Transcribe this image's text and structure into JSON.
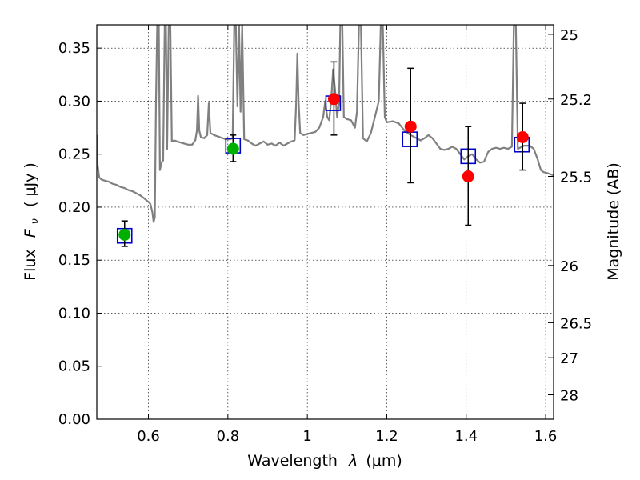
{
  "chart_data": {
    "type": "scatter",
    "xlabel_prefix": "Wavelength",
    "xlabel_symbol": "λ",
    "xlabel_unit": "(μm)",
    "ylabel_prefix": "Flux",
    "ylabel_symbol": "F",
    "ylabel_subscript": "ν",
    "ylabel_unit": "( μJy )",
    "y2label": "Magnitude (AB)",
    "xlim": [
      0.47,
      1.62
    ],
    "ylim": [
      0.0,
      0.372
    ],
    "grid": true,
    "x_ticks": [
      0.6,
      0.8,
      1.0,
      1.2,
      1.4,
      1.6
    ],
    "x_tick_labels": [
      "0.6",
      "0.8",
      "1",
      "1.2",
      "1.4",
      "1.6"
    ],
    "y_ticks": [
      0.0,
      0.05,
      0.1,
      0.15,
      0.2,
      0.25,
      0.3,
      0.35
    ],
    "y_tick_labels": [
      "0.00",
      "0.05",
      "0.10",
      "0.15",
      "0.20",
      "0.25",
      "0.30",
      "0.35"
    ],
    "y2_ticks": [
      {
        "label": "25",
        "flux": 0.363
      },
      {
        "label": "25.2",
        "flux": 0.302
      },
      {
        "label": "25.5",
        "flux": 0.229
      },
      {
        "label": "26",
        "flux": 0.145
      },
      {
        "label": "26.5",
        "flux": 0.091
      },
      {
        "label": "27",
        "flux": 0.058
      },
      {
        "label": "28",
        "flux": 0.023
      }
    ],
    "colors": {
      "spectrum": "#808080",
      "model_box": "#0000cc",
      "green_point": "#00b000",
      "red_point": "#ff0000",
      "errorbar": "#000000"
    },
    "model_boxes": [
      {
        "x": 0.54,
        "y": 0.173
      },
      {
        "x": 0.813,
        "y": 0.258
      },
      {
        "x": 1.065,
        "y": 0.298
      },
      {
        "x": 1.258,
        "y": 0.264
      },
      {
        "x": 1.405,
        "y": 0.248
      },
      {
        "x": 1.54,
        "y": 0.259
      }
    ],
    "green_points": [
      {
        "x": 0.54,
        "y": 0.174,
        "err_low": 0.011,
        "err_high": 0.013
      },
      {
        "x": 0.813,
        "y": 0.255,
        "err_low": 0.012,
        "err_high": 0.013
      }
    ],
    "red_points": [
      {
        "x": 1.067,
        "y": 0.302,
        "err_low": 0.034,
        "err_high": 0.035
      },
      {
        "x": 1.26,
        "y": 0.276,
        "err_low": 0.053,
        "err_high": 0.055
      },
      {
        "x": 1.405,
        "y": 0.229,
        "err_low": 0.046,
        "err_high": 0.047
      },
      {
        "x": 1.542,
        "y": 0.266,
        "err_low": 0.031,
        "err_high": 0.032
      }
    ],
    "spectrum": [
      [
        0.47,
        0.268
      ],
      [
        0.472,
        0.24
      ],
      [
        0.476,
        0.228
      ],
      [
        0.482,
        0.226
      ],
      [
        0.49,
        0.225
      ],
      [
        0.5,
        0.224
      ],
      [
        0.51,
        0.222
      ],
      [
        0.52,
        0.221
      ],
      [
        0.53,
        0.219
      ],
      [
        0.54,
        0.218
      ],
      [
        0.55,
        0.216
      ],
      [
        0.56,
        0.215
      ],
      [
        0.57,
        0.213
      ],
      [
        0.58,
        0.211
      ],
      [
        0.59,
        0.208
      ],
      [
        0.6,
        0.205
      ],
      [
        0.605,
        0.203
      ],
      [
        0.61,
        0.195
      ],
      [
        0.613,
        0.186
      ],
      [
        0.616,
        0.19
      ],
      [
        0.619,
        0.3
      ],
      [
        0.622,
        0.372
      ],
      [
        0.626,
        0.372
      ],
      [
        0.629,
        0.235
      ],
      [
        0.633,
        0.242
      ],
      [
        0.637,
        0.244
      ],
      [
        0.641,
        0.372
      ],
      [
        0.644,
        0.372
      ],
      [
        0.647,
        0.255
      ],
      [
        0.651,
        0.372
      ],
      [
        0.655,
        0.372
      ],
      [
        0.659,
        0.262
      ],
      [
        0.665,
        0.263
      ],
      [
        0.672,
        0.262
      ],
      [
        0.68,
        0.261
      ],
      [
        0.69,
        0.26
      ],
      [
        0.7,
        0.259
      ],
      [
        0.71,
        0.259
      ],
      [
        0.718,
        0.263
      ],
      [
        0.722,
        0.272
      ],
      [
        0.725,
        0.305
      ],
      [
        0.728,
        0.272
      ],
      [
        0.732,
        0.266
      ],
      [
        0.74,
        0.265
      ],
      [
        0.748,
        0.268
      ],
      [
        0.752,
        0.298
      ],
      [
        0.756,
        0.27
      ],
      [
        0.765,
        0.268
      ],
      [
        0.78,
        0.266
      ],
      [
        0.795,
        0.264
      ],
      [
        0.805,
        0.264
      ],
      [
        0.812,
        0.265
      ],
      [
        0.816,
        0.372
      ],
      [
        0.82,
        0.372
      ],
      [
        0.824,
        0.295
      ],
      [
        0.828,
        0.372
      ],
      [
        0.832,
        0.29
      ],
      [
        0.836,
        0.372
      ],
      [
        0.841,
        0.264
      ],
      [
        0.85,
        0.263
      ],
      [
        0.86,
        0.26
      ],
      [
        0.87,
        0.258
      ],
      [
        0.88,
        0.26
      ],
      [
        0.89,
        0.262
      ],
      [
        0.9,
        0.259
      ],
      [
        0.91,
        0.26
      ],
      [
        0.92,
        0.258
      ],
      [
        0.93,
        0.261
      ],
      [
        0.94,
        0.258
      ],
      [
        0.95,
        0.26
      ],
      [
        0.96,
        0.262
      ],
      [
        0.968,
        0.263
      ],
      [
        0.972,
        0.3
      ],
      [
        0.975,
        0.345
      ],
      [
        0.978,
        0.3
      ],
      [
        0.982,
        0.27
      ],
      [
        0.99,
        0.268
      ],
      [
        1.0,
        0.269
      ],
      [
        1.01,
        0.27
      ],
      [
        1.02,
        0.271
      ],
      [
        1.03,
        0.275
      ],
      [
        1.04,
        0.285
      ],
      [
        1.045,
        0.3
      ],
      [
        1.05,
        0.285
      ],
      [
        1.055,
        0.282
      ],
      [
        1.06,
        0.3
      ],
      [
        1.065,
        0.33
      ],
      [
        1.07,
        0.31
      ],
      [
        1.075,
        0.285
      ],
      [
        1.08,
        0.3
      ],
      [
        1.083,
        0.372
      ],
      [
        1.088,
        0.372
      ],
      [
        1.092,
        0.285
      ],
      [
        1.1,
        0.283
      ],
      [
        1.11,
        0.282
      ],
      [
        1.12,
        0.275
      ],
      [
        1.125,
        0.29
      ],
      [
        1.13,
        0.372
      ],
      [
        1.135,
        0.372
      ],
      [
        1.14,
        0.265
      ],
      [
        1.15,
        0.262
      ],
      [
        1.16,
        0.27
      ],
      [
        1.17,
        0.285
      ],
      [
        1.18,
        0.3
      ],
      [
        1.185,
        0.372
      ],
      [
        1.19,
        0.372
      ],
      [
        1.195,
        0.285
      ],
      [
        1.2,
        0.28
      ],
      [
        1.215,
        0.281
      ],
      [
        1.23,
        0.279
      ],
      [
        1.245,
        0.272
      ],
      [
        1.26,
        0.268
      ],
      [
        1.275,
        0.265
      ],
      [
        1.285,
        0.263
      ],
      [
        1.295,
        0.265
      ],
      [
        1.305,
        0.268
      ],
      [
        1.315,
        0.265
      ],
      [
        1.325,
        0.26
      ],
      [
        1.335,
        0.255
      ],
      [
        1.345,
        0.254
      ],
      [
        1.355,
        0.255
      ],
      [
        1.365,
        0.257
      ],
      [
        1.375,
        0.255
      ],
      [
        1.385,
        0.25
      ],
      [
        1.395,
        0.245
      ],
      [
        1.405,
        0.248
      ],
      [
        1.415,
        0.25
      ],
      [
        1.425,
        0.245
      ],
      [
        1.435,
        0.242
      ],
      [
        1.445,
        0.243
      ],
      [
        1.455,
        0.252
      ],
      [
        1.465,
        0.255
      ],
      [
        1.475,
        0.256
      ],
      [
        1.485,
        0.255
      ],
      [
        1.495,
        0.256
      ],
      [
        1.505,
        0.255
      ],
      [
        1.515,
        0.257
      ],
      [
        1.52,
        0.372
      ],
      [
        1.525,
        0.372
      ],
      [
        1.53,
        0.255
      ],
      [
        1.545,
        0.258
      ],
      [
        1.56,
        0.258
      ],
      [
        1.57,
        0.255
      ],
      [
        1.58,
        0.245
      ],
      [
        1.588,
        0.235
      ],
      [
        1.595,
        0.233
      ],
      [
        1.605,
        0.232
      ],
      [
        1.62,
        0.23
      ]
    ]
  }
}
